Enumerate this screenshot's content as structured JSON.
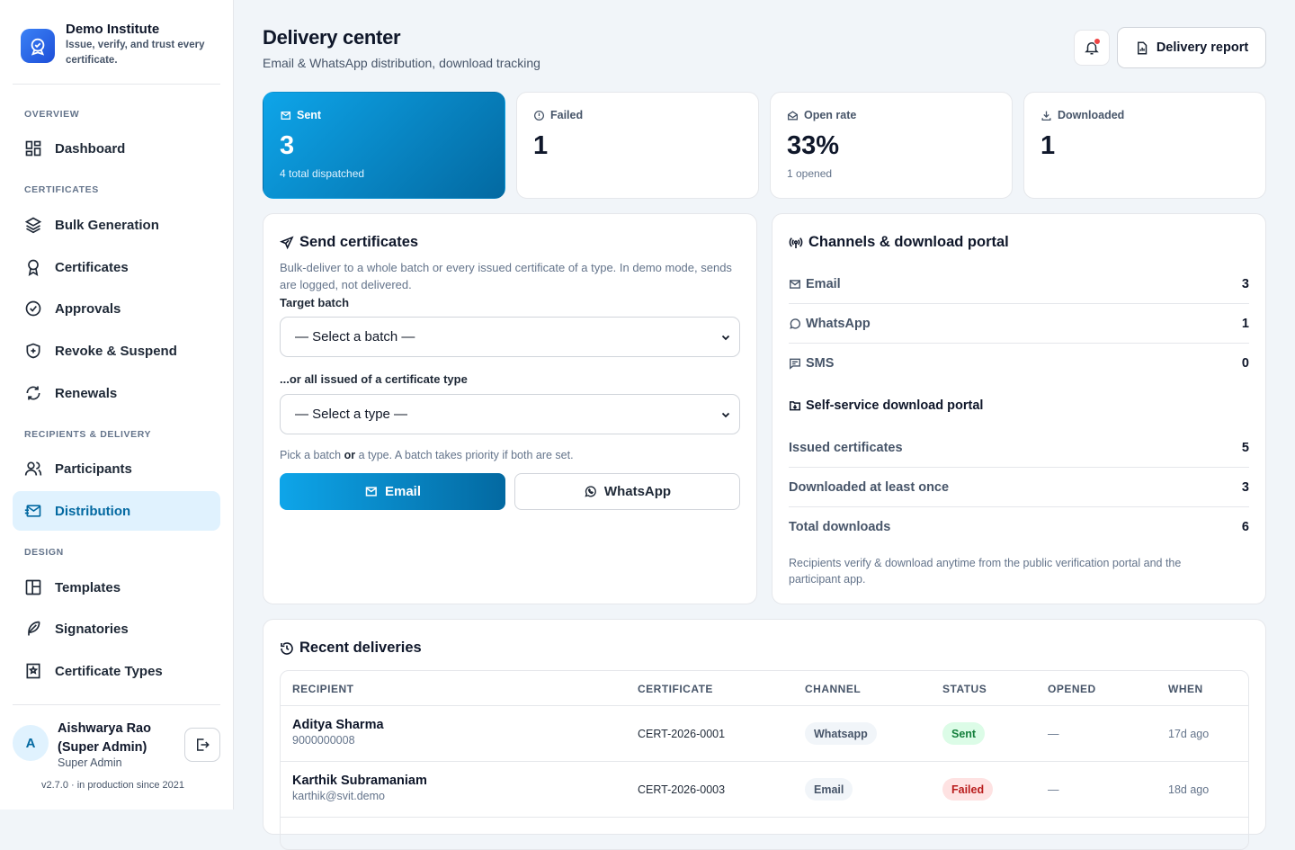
{
  "brand": {
    "name": "Demo Institute",
    "tagline": "Issue, verify, and trust every certificate."
  },
  "nav": {
    "sections": [
      "OVERVIEW",
      "CERTIFICATES",
      "RECIPIENTS & DELIVERY",
      "DESIGN"
    ],
    "items": [
      "Dashboard",
      "Bulk Generation",
      "Certificates",
      "Approvals",
      "Revoke & Suspend",
      "Renewals",
      "Participants",
      "Distribution",
      "Templates",
      "Signatories",
      "Certificate Types"
    ],
    "active": "Distribution"
  },
  "user": {
    "initial": "A",
    "name": "Aishwarya Rao (Super Admin)",
    "role": "Super Admin",
    "version": "v2.7.0 · in production since 2021"
  },
  "header": {
    "title": "Delivery center",
    "subtitle": "Email & WhatsApp distribution, download tracking",
    "report_label": "Delivery report"
  },
  "stats": [
    {
      "label": "Sent",
      "value": "3",
      "hint": "4 total dispatched"
    },
    {
      "label": "Failed",
      "value": "1",
      "hint": ""
    },
    {
      "label": "Open rate",
      "value": "33%",
      "hint": "1 opened"
    },
    {
      "label": "Downloaded",
      "value": "1",
      "hint": ""
    }
  ],
  "send": {
    "title": "Send certificates",
    "description": "Bulk-deliver to a whole batch or every issued certificate of a type. In demo mode, sends are logged, not delivered.",
    "batch_label": "Target batch",
    "batch_selected": "— Select a batch —",
    "type_label": "...or all issued of a certificate type",
    "type_selected": "— Select a type —",
    "hint_pre": "Pick a batch",
    "hint_or": "or",
    "hint_post": "a type. A batch takes priority if both are set.",
    "email_label": "Email",
    "whatsapp_label": "WhatsApp"
  },
  "channels": {
    "title": "Channels & download portal",
    "rows": [
      {
        "label": "Email",
        "value": "3"
      },
      {
        "label": "WhatsApp",
        "value": "1"
      },
      {
        "label": "SMS",
        "value": "0"
      }
    ],
    "portal_title": "Self-service download portal",
    "portal_rows": [
      {
        "label": "Issued certificates",
        "value": "5"
      },
      {
        "label": "Downloaded at least once",
        "value": "3"
      },
      {
        "label": "Total downloads",
        "value": "6"
      }
    ],
    "note": "Recipients verify & download anytime from the public verification portal and the participant app."
  },
  "recent": {
    "title": "Recent deliveries",
    "columns": [
      "RECIPIENT",
      "CERTIFICATE",
      "CHANNEL",
      "STATUS",
      "OPENED",
      "WHEN"
    ],
    "rows": [
      {
        "name": "Aditya Sharma",
        "contact": "9000000008",
        "certificate": "CERT-2026-0001",
        "channel": "Whatsapp",
        "status": "Sent",
        "opened": "—",
        "when": "17d ago"
      },
      {
        "name": "Karthik Subramaniam",
        "contact": "karthik@svit.demo",
        "certificate": "CERT-2026-0003",
        "channel": "Email",
        "status": "Failed",
        "opened": "—",
        "when": "18d ago"
      }
    ]
  },
  "colors": {
    "accent": "#0284c7",
    "sent": "#15803d",
    "failed": "#b91c1c"
  }
}
